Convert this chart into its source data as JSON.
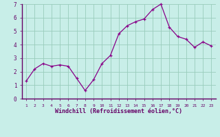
{
  "x": [
    1,
    2,
    3,
    4,
    5,
    6,
    7,
    8,
    9,
    10,
    11,
    12,
    13,
    14,
    15,
    16,
    17,
    18,
    19,
    20,
    21,
    22,
    23
  ],
  "y": [
    1.3,
    2.2,
    2.6,
    2.4,
    2.5,
    2.4,
    1.5,
    0.6,
    1.4,
    2.6,
    3.2,
    4.8,
    5.4,
    5.7,
    5.9,
    6.6,
    7.0,
    5.3,
    4.6,
    4.4,
    3.8,
    4.2,
    3.9
  ],
  "line_color": "#880088",
  "marker": "+",
  "marker_size": 3.5,
  "bg_color": "#c8eee8",
  "grid_color": "#99ccbb",
  "xlabel": "Windchill (Refroidissement éolien,°C)",
  "ylim": [
    0,
    7
  ],
  "xlim": [
    0.5,
    23.5
  ],
  "yticks": [
    0,
    1,
    2,
    3,
    4,
    5,
    6,
    7
  ],
  "xticks": [
    1,
    2,
    3,
    4,
    5,
    6,
    7,
    8,
    9,
    10,
    11,
    12,
    13,
    14,
    15,
    16,
    17,
    18,
    19,
    20,
    21,
    22,
    23
  ],
  "xlabel_color": "#660066",
  "tick_color": "#660066",
  "spine_color": "#660066",
  "separator_color": "#660066"
}
